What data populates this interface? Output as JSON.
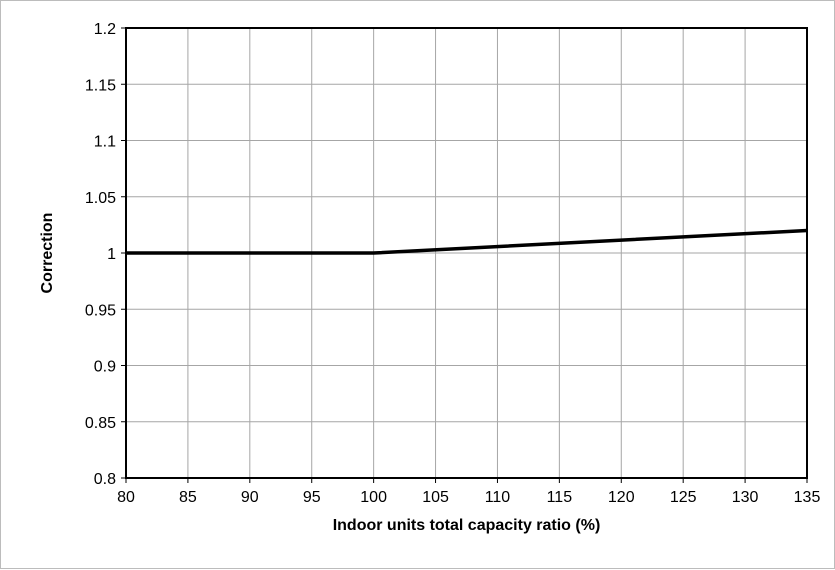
{
  "chart_data": {
    "type": "line",
    "title": "",
    "xlabel": "Indoor units total capacity ratio (%)",
    "ylabel": "Correction",
    "xlim": [
      80,
      135
    ],
    "ylim": [
      0.8,
      1.2
    ],
    "x_ticks": [
      "80",
      "85",
      "90",
      "95",
      "100",
      "105",
      "110",
      "115",
      "120",
      "125",
      "130",
      "135"
    ],
    "y_ticks": [
      "0.8",
      "0.85",
      "0.9",
      "0.95",
      "1",
      "1.05",
      "1.1",
      "1.15",
      "1.2"
    ],
    "grid": true,
    "legend": "none",
    "colors": {
      "line": "#000000",
      "grid": "#a6a6a6",
      "frame": "#000000"
    },
    "series": [
      {
        "x": [
          80,
          100,
          135
        ],
        "y": [
          1.0,
          1.0,
          1.02
        ]
      }
    ]
  }
}
